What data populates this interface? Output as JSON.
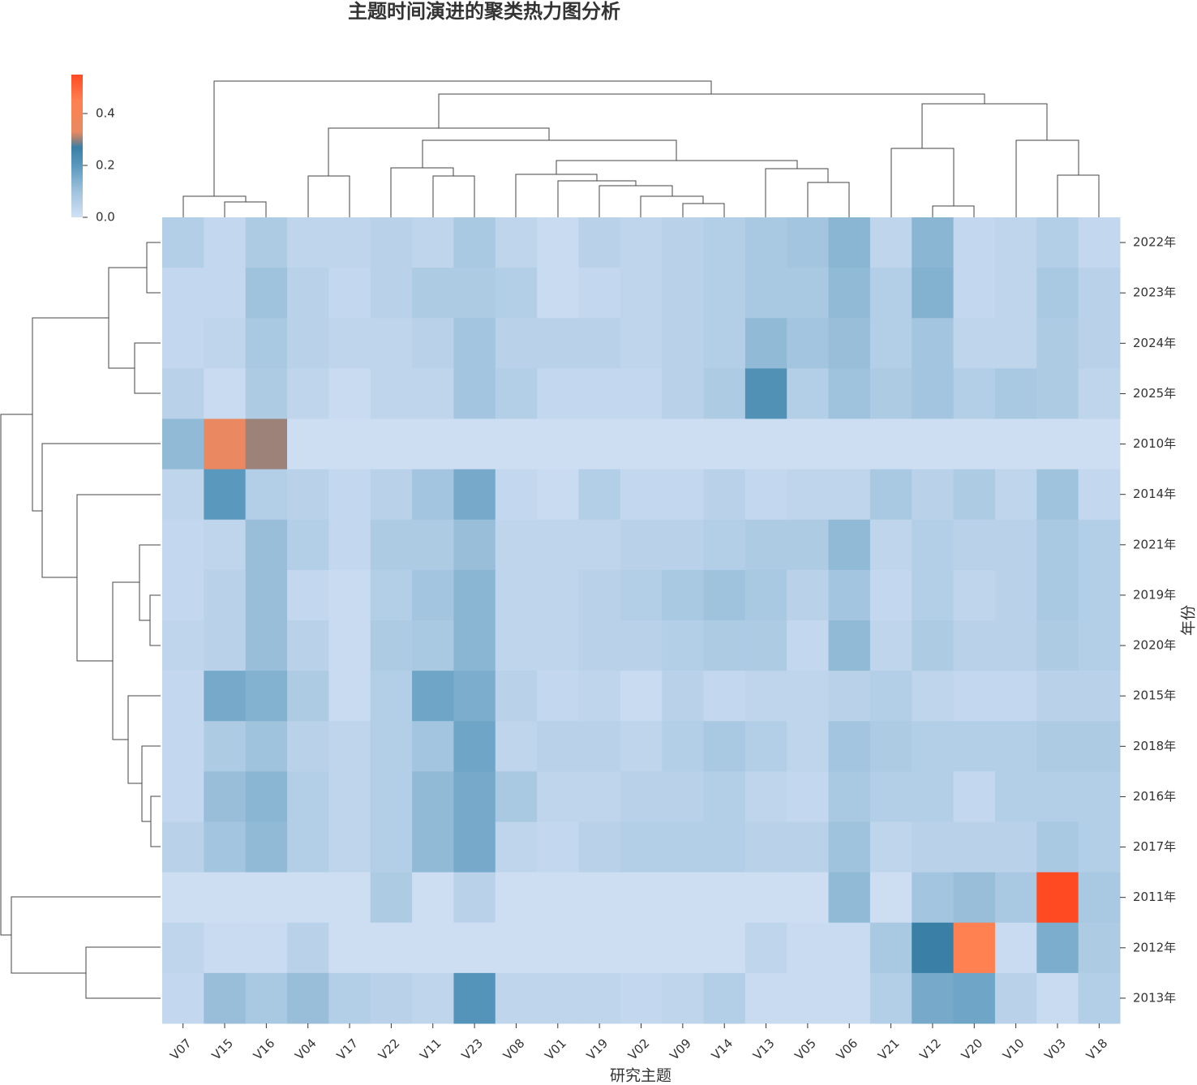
{
  "chart_data": {
    "type": "clustermap",
    "title": "主题时间演进的聚类热力图分析",
    "xlabel": "研究主题",
    "ylabel": "年份",
    "x_categories": [
      "V07",
      "V15",
      "V16",
      "V04",
      "V17",
      "V22",
      "V11",
      "V23",
      "V08",
      "V01",
      "V19",
      "V02",
      "V09",
      "V14",
      "V13",
      "V05",
      "V06",
      "V21",
      "V12",
      "V20",
      "V10",
      "V03",
      "V18"
    ],
    "y_categories": [
      "2022年",
      "2023年",
      "2024年",
      "2025年",
      "2010年",
      "2014年",
      "2021年",
      "2019年",
      "2020年",
      "2015年",
      "2018年",
      "2016年",
      "2017年",
      "2011年",
      "2012年",
      "2013年"
    ],
    "values": [
      [
        0.06,
        0.03,
        0.07,
        0.04,
        0.04,
        0.05,
        0.04,
        0.08,
        0.04,
        0.02,
        0.05,
        0.04,
        0.05,
        0.06,
        0.08,
        0.09,
        0.13,
        0.04,
        0.13,
        0.03,
        0.04,
        0.06,
        0.03
      ],
      [
        0.03,
        0.03,
        0.1,
        0.05,
        0.03,
        0.05,
        0.07,
        0.07,
        0.06,
        0.02,
        0.03,
        0.04,
        0.05,
        0.06,
        0.08,
        0.08,
        0.12,
        0.06,
        0.14,
        0.03,
        0.04,
        0.08,
        0.05
      ],
      [
        0.03,
        0.04,
        0.08,
        0.05,
        0.04,
        0.04,
        0.05,
        0.09,
        0.05,
        0.05,
        0.05,
        0.04,
        0.05,
        0.06,
        0.12,
        0.09,
        0.11,
        0.06,
        0.09,
        0.04,
        0.04,
        0.07,
        0.05
      ],
      [
        0.05,
        0.02,
        0.07,
        0.04,
        0.02,
        0.04,
        0.04,
        0.09,
        0.06,
        0.03,
        0.03,
        0.03,
        0.05,
        0.07,
        0.22,
        0.06,
        0.1,
        0.07,
        0.09,
        0.06,
        0.08,
        0.07,
        0.04
      ],
      [
        0.12,
        0.34,
        0.3,
        0.01,
        0.01,
        0.01,
        0.01,
        0.01,
        0.01,
        0.01,
        0.01,
        0.01,
        0.01,
        0.01,
        0.01,
        0.01,
        0.01,
        0.01,
        0.01,
        0.01,
        0.01,
        0.01,
        0.01
      ],
      [
        0.04,
        0.2,
        0.06,
        0.05,
        0.03,
        0.05,
        0.09,
        0.16,
        0.03,
        0.02,
        0.06,
        0.03,
        0.03,
        0.05,
        0.03,
        0.04,
        0.04,
        0.08,
        0.05,
        0.07,
        0.04,
        0.1,
        0.03
      ],
      [
        0.03,
        0.04,
        0.11,
        0.06,
        0.03,
        0.07,
        0.07,
        0.11,
        0.04,
        0.04,
        0.04,
        0.05,
        0.05,
        0.06,
        0.07,
        0.07,
        0.12,
        0.04,
        0.06,
        0.05,
        0.05,
        0.08,
        0.06
      ],
      [
        0.03,
        0.05,
        0.11,
        0.03,
        0.02,
        0.06,
        0.09,
        0.13,
        0.04,
        0.04,
        0.05,
        0.06,
        0.08,
        0.1,
        0.08,
        0.05,
        0.09,
        0.03,
        0.06,
        0.04,
        0.05,
        0.08,
        0.06
      ],
      [
        0.04,
        0.05,
        0.11,
        0.05,
        0.02,
        0.07,
        0.08,
        0.13,
        0.04,
        0.04,
        0.05,
        0.05,
        0.06,
        0.07,
        0.07,
        0.03,
        0.12,
        0.04,
        0.07,
        0.05,
        0.05,
        0.07,
        0.06
      ],
      [
        0.03,
        0.16,
        0.14,
        0.07,
        0.02,
        0.06,
        0.17,
        0.15,
        0.05,
        0.03,
        0.04,
        0.02,
        0.05,
        0.03,
        0.04,
        0.04,
        0.05,
        0.06,
        0.04,
        0.03,
        0.03,
        0.05,
        0.05
      ],
      [
        0.03,
        0.07,
        0.1,
        0.05,
        0.04,
        0.06,
        0.09,
        0.17,
        0.04,
        0.05,
        0.05,
        0.04,
        0.06,
        0.08,
        0.06,
        0.04,
        0.09,
        0.07,
        0.06,
        0.06,
        0.06,
        0.07,
        0.07
      ],
      [
        0.03,
        0.11,
        0.13,
        0.06,
        0.04,
        0.06,
        0.12,
        0.16,
        0.08,
        0.04,
        0.04,
        0.05,
        0.05,
        0.06,
        0.04,
        0.03,
        0.08,
        0.06,
        0.06,
        0.03,
        0.06,
        0.06,
        0.06
      ],
      [
        0.05,
        0.09,
        0.12,
        0.06,
        0.04,
        0.06,
        0.12,
        0.16,
        0.04,
        0.03,
        0.05,
        0.06,
        0.06,
        0.06,
        0.05,
        0.05,
        0.1,
        0.04,
        0.05,
        0.05,
        0.05,
        0.08,
        0.06
      ],
      [
        0.01,
        0.01,
        0.01,
        0.01,
        0.01,
        0.07,
        0.01,
        0.05,
        0.01,
        0.01,
        0.01,
        0.01,
        0.01,
        0.01,
        0.01,
        0.01,
        0.12,
        0.01,
        0.09,
        0.11,
        0.08,
        0.55,
        0.08
      ],
      [
        0.04,
        0.02,
        0.02,
        0.05,
        0.01,
        0.01,
        0.01,
        0.01,
        0.01,
        0.01,
        0.01,
        0.01,
        0.01,
        0.01,
        0.04,
        0.02,
        0.02,
        0.08,
        0.27,
        0.45,
        0.02,
        0.15,
        0.07
      ],
      [
        0.03,
        0.11,
        0.08,
        0.11,
        0.06,
        0.05,
        0.04,
        0.21,
        0.04,
        0.04,
        0.04,
        0.03,
        0.04,
        0.06,
        0.02,
        0.02,
        0.02,
        0.06,
        0.16,
        0.17,
        0.05,
        0.02,
        0.06
      ]
    ],
    "colorscale": [
      [
        0,
        "#d2e1f5"
      ],
      [
        0.1,
        "#9fc2dd"
      ],
      [
        0.2,
        "#5a98bd"
      ],
      [
        0.27,
        "#3a7fa6"
      ],
      [
        0.3,
        "#9c8278"
      ],
      [
        0.33,
        "#e88a62"
      ],
      [
        0.45,
        "#ff8050"
      ],
      [
        0.55,
        "#ff4a22"
      ]
    ],
    "clim": [
      0,
      0.55
    ],
    "cticks": [
      {
        "value": 0,
        "label": "0.0"
      },
      {
        "value": 0.2,
        "label": "0.2"
      },
      {
        "value": 0.4,
        "label": "0.4"
      }
    ]
  }
}
